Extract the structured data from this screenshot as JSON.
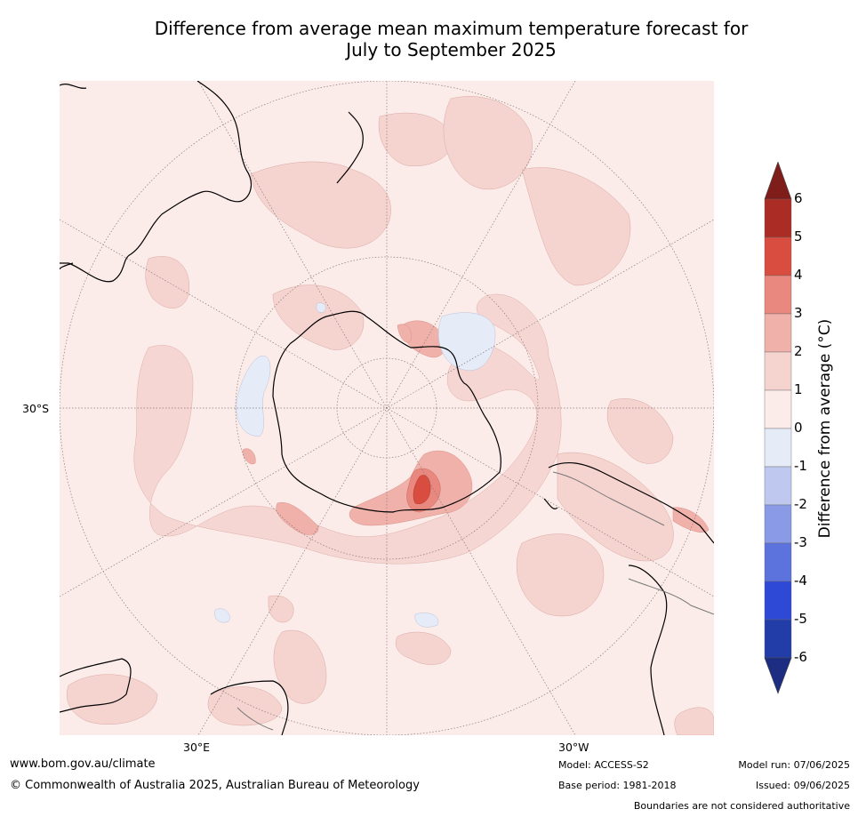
{
  "title_line1": "Difference from average mean maximum temperature forecast for",
  "title_line2": "July to September 2025",
  "map": {
    "projection": "south-polar-stereographic",
    "lat_label": "30°S",
    "lon_labels": {
      "east": "30°E",
      "west": "30°W"
    },
    "background_color": "#fbebe9"
  },
  "colorbar": {
    "label": "Difference from average (°C)",
    "ticks": [
      "6",
      "5",
      "4",
      "3",
      "2",
      "1",
      "0",
      "-1",
      "-2",
      "-3",
      "-4",
      "-5",
      "-6"
    ],
    "colors_top_to_bottom": [
      "#7f1d1a",
      "#aa2c24",
      "#d94d40",
      "#e8887f",
      "#f0b1aa",
      "#f5d4d0",
      "#fbebe9",
      "#e6ebf8",
      "#bfc9ef",
      "#8a9ae6",
      "#5c72dd",
      "#2d49d6",
      "#233da8",
      "#1d2e82"
    ]
  },
  "footer": {
    "website": "www.bom.gov.au/climate",
    "copyright": "© Commonwealth of Australia 2025, Australian Bureau of Meteorology",
    "model": "Model: ACCESS-S2",
    "base_period": "Base period: 1981-2018",
    "model_run": "Model run: 07/06/2025",
    "issued": "Issued: 09/06/2025",
    "disclaimer": "Boundaries are not considered authoritative"
  }
}
